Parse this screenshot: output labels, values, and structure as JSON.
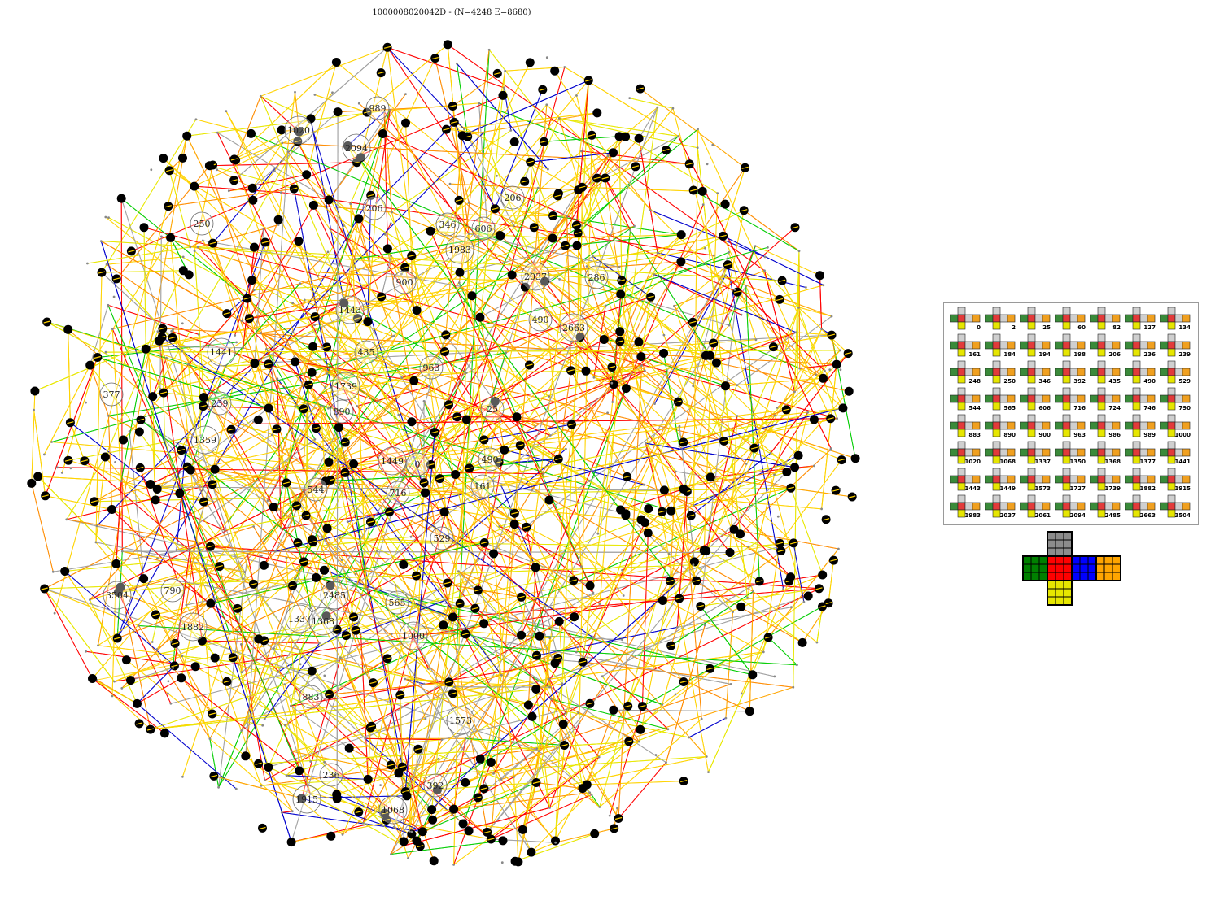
{
  "title": "1000008020042D - (N=4248 E=8680)",
  "graph": {
    "edge_colors": [
      "#ffd200",
      "#e8e800",
      "#ff8c00",
      "#ff0000",
      "#00cc00",
      "#0000cc",
      "#a0a0a0",
      "#ffa500"
    ],
    "node_fill": "#000000",
    "labeled_nodes": [
      {
        "label": "989"
      },
      {
        "label": "1020"
      },
      {
        "label": "2094"
      },
      {
        "label": "206"
      },
      {
        "label": "206"
      },
      {
        "label": "250"
      },
      {
        "label": "346"
      },
      {
        "label": "606"
      },
      {
        "label": "1983"
      },
      {
        "label": "900"
      },
      {
        "label": "2037"
      },
      {
        "label": "286"
      },
      {
        "label": "1443"
      },
      {
        "label": "490"
      },
      {
        "label": "2663"
      },
      {
        "label": "1441"
      },
      {
        "label": "435"
      },
      {
        "label": "963"
      },
      {
        "label": "377"
      },
      {
        "label": "239"
      },
      {
        "label": "1739"
      },
      {
        "label": "890"
      },
      {
        "label": "25"
      },
      {
        "label": "1359"
      },
      {
        "label": "1449"
      },
      {
        "label": "0"
      },
      {
        "label": "490"
      },
      {
        "label": "161"
      },
      {
        "label": "544"
      },
      {
        "label": "716"
      },
      {
        "label": "3504"
      },
      {
        "label": "790"
      },
      {
        "label": "2485"
      },
      {
        "label": "1337"
      },
      {
        "label": "1368"
      },
      {
        "label": "565"
      },
      {
        "label": "1882"
      },
      {
        "label": "529"
      },
      {
        "label": "1000"
      },
      {
        "label": "883"
      },
      {
        "label": "1573"
      },
      {
        "label": "236"
      },
      {
        "label": "1915"
      },
      {
        "label": "1068"
      },
      {
        "label": "392"
      }
    ]
  },
  "legend": {
    "cells": [
      "0",
      "2",
      "25",
      "60",
      "82",
      "127",
      "134",
      "161",
      "184",
      "194",
      "198",
      "206",
      "236",
      "239",
      "248",
      "250",
      "346",
      "392",
      "435",
      "490",
      "529",
      "544",
      "565",
      "606",
      "716",
      "724",
      "746",
      "790",
      "883",
      "890",
      "900",
      "963",
      "986",
      "989",
      "1000",
      "1020",
      "1068",
      "1337",
      "1350",
      "1368",
      "1377",
      "1441",
      "1443",
      "1449",
      "1573",
      "1727",
      "1739",
      "1882",
      "1915",
      "1983",
      "2037",
      "2061",
      "2094",
      "2485",
      "2663",
      "3504"
    ]
  },
  "cube": {
    "faces": {
      "up": "#8c8c8c",
      "left": "#008000",
      "front": "#ff0000",
      "right": "#0000ff",
      "back": "#ffa500",
      "down": "#e6e600"
    }
  }
}
